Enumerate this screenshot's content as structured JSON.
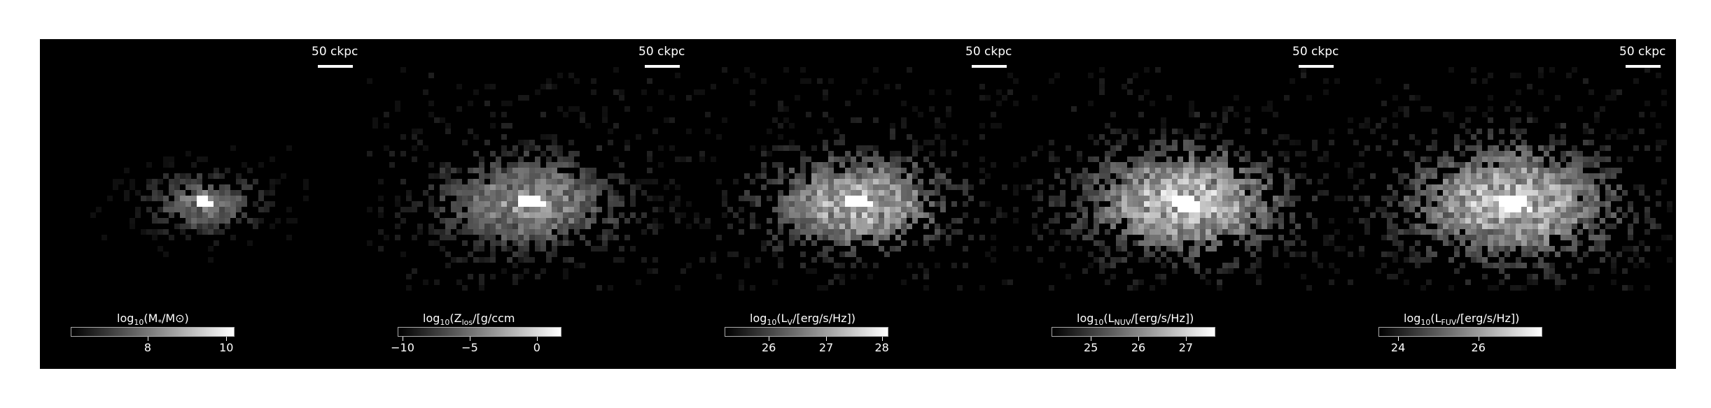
{
  "scale_bar_label": "50 ckpc",
  "panels": [
    {
      "colorbar": {
        "label_prefix": "log",
        "label_sub": "10",
        "label_body": "(M",
        "label_star": "*",
        "label_rest": "/M",
        "label_sun": "⊙",
        "label_end": ")",
        "ticks": [
          {
            "label": "8",
            "frac": 0.47
          },
          {
            "label": "10",
            "frac": 0.95
          }
        ]
      }
    },
    {
      "colorbar": {
        "label_prefix": "log",
        "label_sub": "10",
        "label_body": "(Z",
        "label_star": "los",
        "label_rest": "/[g/c",
        "label_sun": "",
        "label_end": "cm",
        "ticks": [
          {
            "label": "−10",
            "frac": 0.03
          },
          {
            "label": "−5",
            "frac": 0.44
          },
          {
            "label": "0",
            "frac": 0.85
          }
        ]
      }
    },
    {
      "colorbar": {
        "label_prefix": "log",
        "label_sub": "10",
        "label_body": "(L",
        "label_star": "V",
        "label_rest": "/[erg/s/Hz])",
        "label_sun": "",
        "label_end": "",
        "ticks": [
          {
            "label": "26",
            "frac": 0.27
          },
          {
            "label": "27",
            "frac": 0.62
          },
          {
            "label": "28",
            "frac": 0.96
          }
        ]
      }
    },
    {
      "colorbar": {
        "label_prefix": "log",
        "label_sub": "10",
        "label_body": "(L",
        "label_star": "NUV",
        "label_rest": "/[erg/s/Hz])",
        "label_sun": "",
        "label_end": "",
        "ticks": [
          {
            "label": "25",
            "frac": 0.24
          },
          {
            "label": "26",
            "frac": 0.53
          },
          {
            "label": "27",
            "frac": 0.82
          }
        ]
      }
    },
    {
      "colorbar": {
        "label_prefix": "log",
        "label_sub": "10",
        "label_body": "(L",
        "label_star": "FUV",
        "label_rest": "/[erg/s/Hz])",
        "label_sun": "",
        "label_end": "",
        "ticks": [
          {
            "label": "24",
            "frac": 0.12
          },
          {
            "label": "26",
            "frac": 0.61
          }
        ]
      }
    }
  ]
}
